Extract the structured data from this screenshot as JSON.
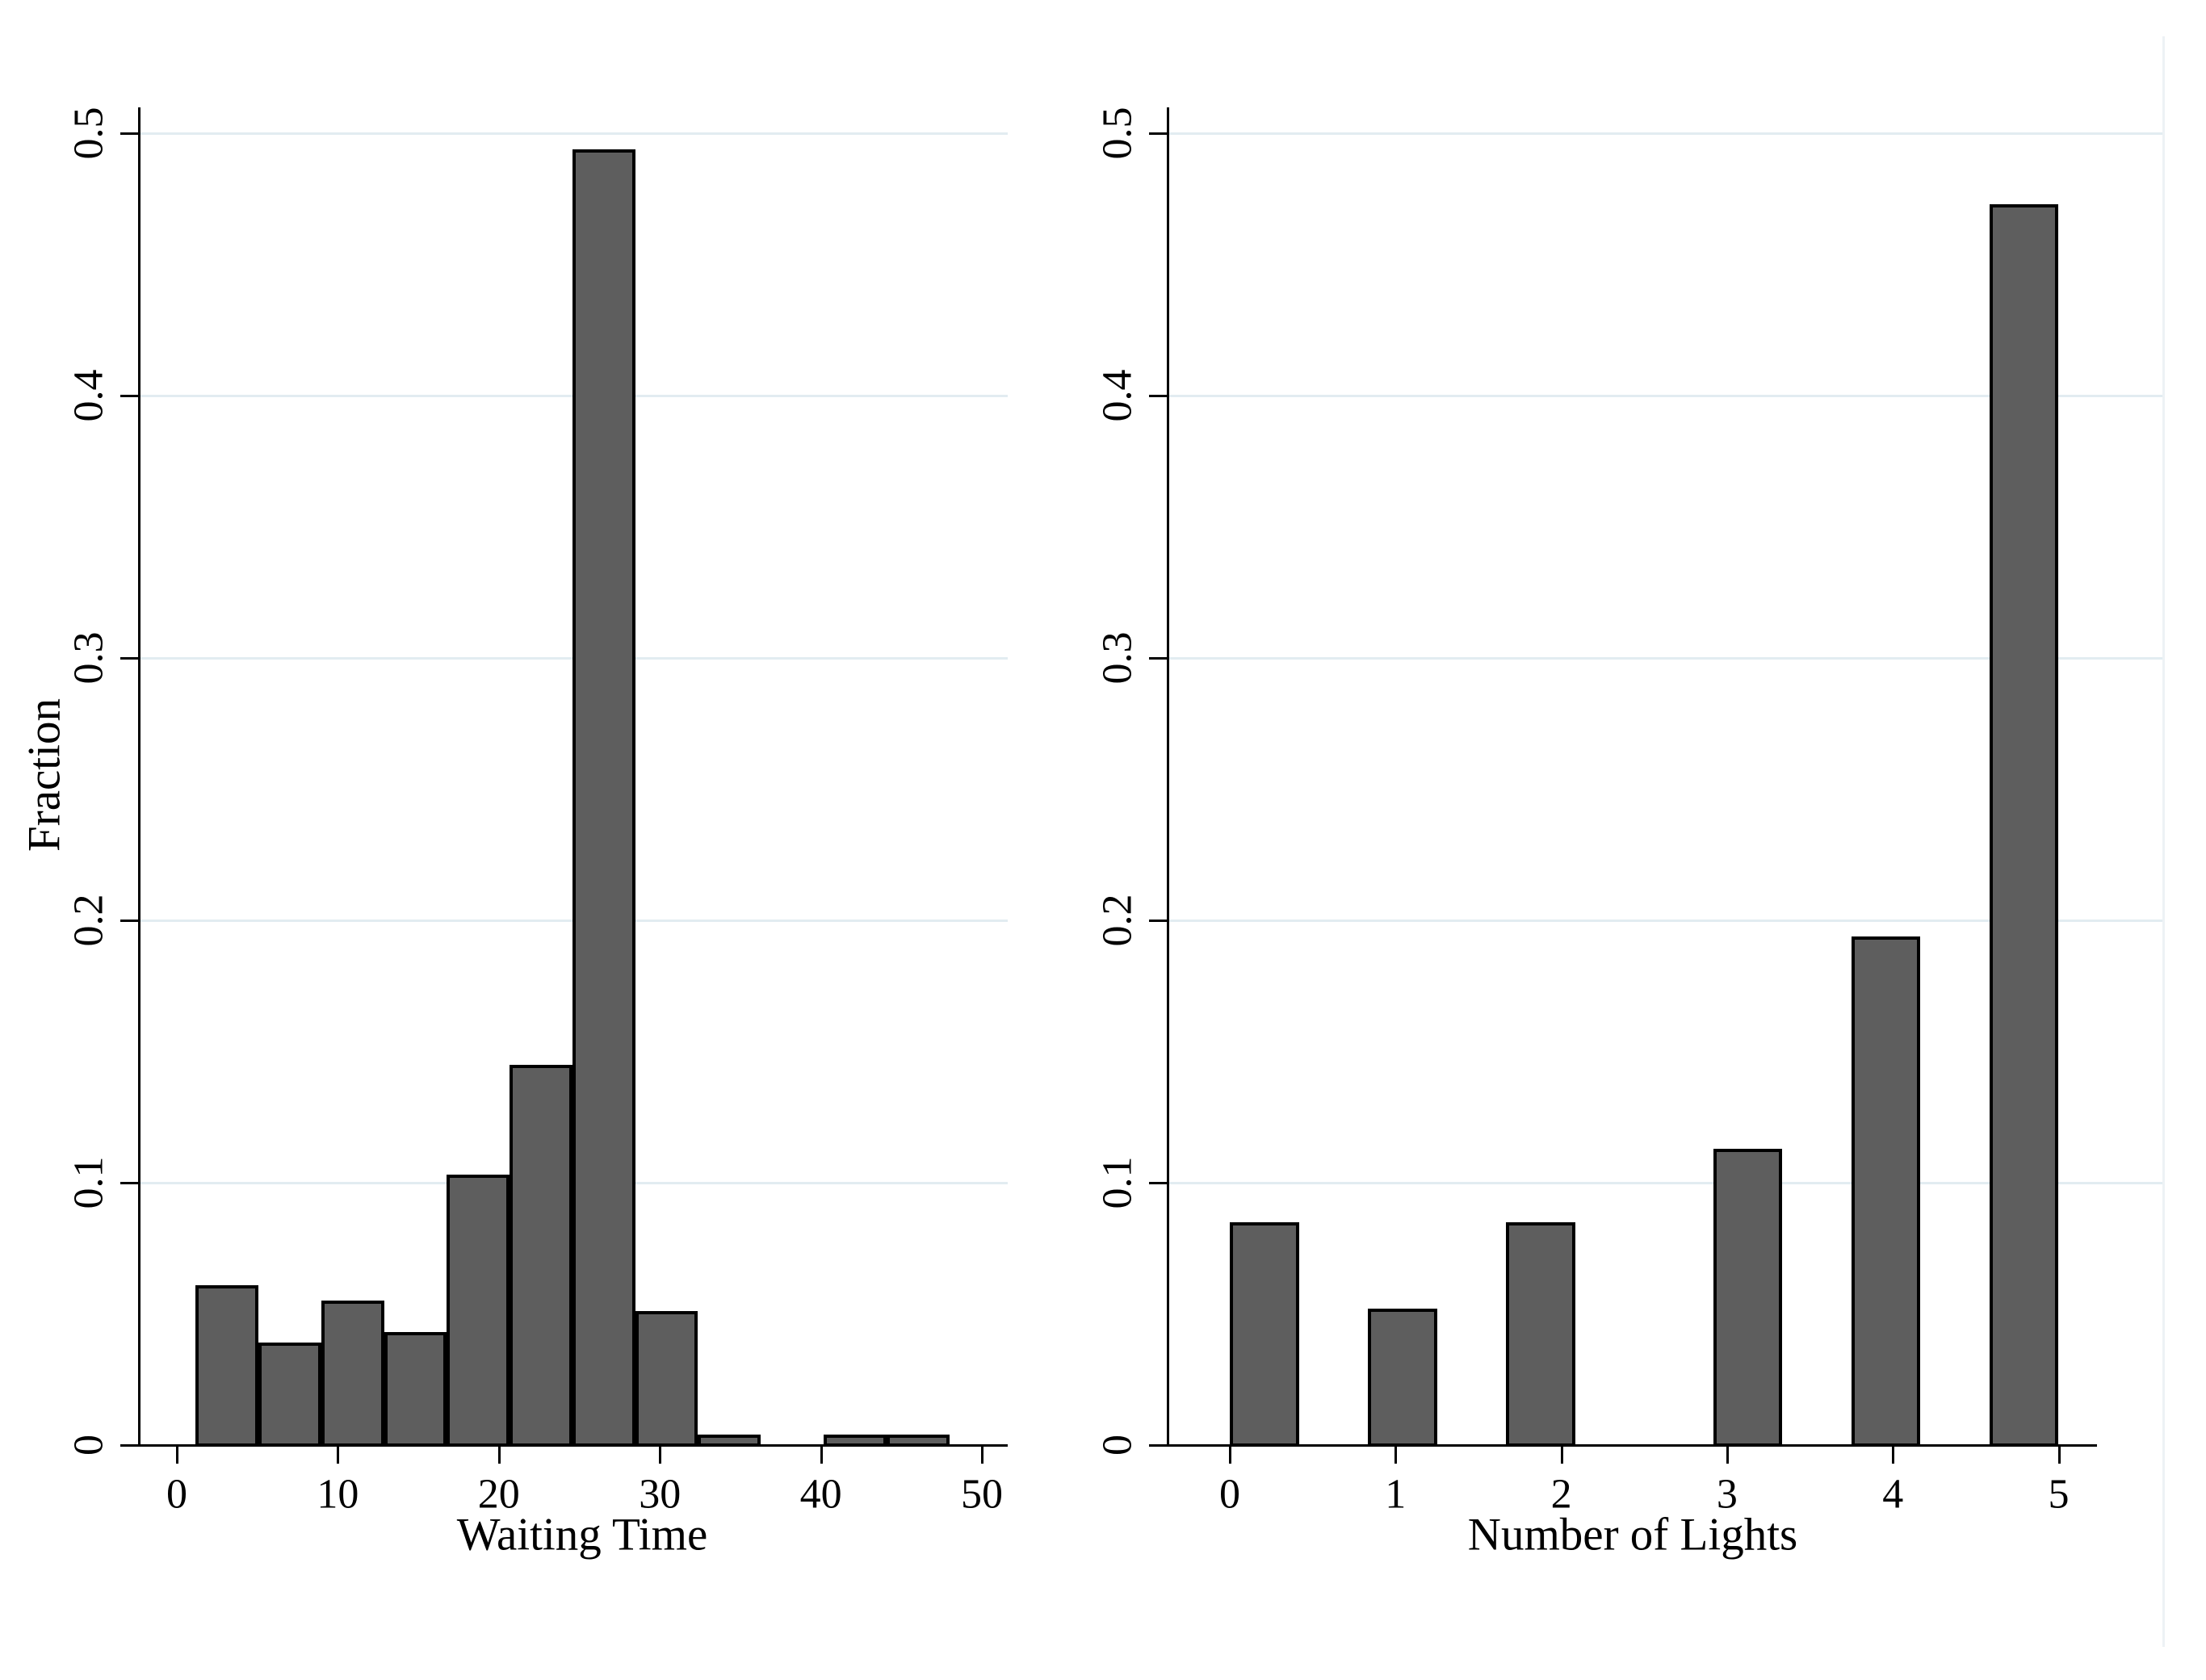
{
  "style": {
    "bar_fill": "#5e5e5e",
    "bar_stroke": "#000000",
    "grid_color": "#e2ecf1",
    "plot_border_color": "#edf2f5",
    "axis_color": "#000000",
    "text_color": "#000000",
    "background": "#ffffff"
  },
  "chart_data": [
    {
      "type": "bar",
      "kind": "histogram",
      "title": "",
      "xlabel": "Waiting Time",
      "ylabel": "Fraction",
      "ylim": [
        0,
        0.5
      ],
      "grid": "horizontal",
      "legend": "none",
      "yticks": [
        0,
        0.1,
        0.2,
        0.3,
        0.4,
        0.5
      ],
      "ytick_labels": [
        "0",
        "0.1",
        "0.2",
        "0.3",
        "0.4",
        "0.5"
      ],
      "xticks": [
        0,
        10,
        20,
        30,
        40,
        50
      ],
      "xtick_labels": [
        "0",
        "10",
        "20",
        "30",
        "40",
        "50"
      ],
      "bin_width": 3.9,
      "bars": [
        {
          "x": 1.17,
          "width": 3.9,
          "fraction": 0.061
        },
        {
          "x": 5.07,
          "width": 3.9,
          "fraction": 0.039
        },
        {
          "x": 8.97,
          "width": 3.9,
          "fraction": 0.055
        },
        {
          "x": 12.87,
          "width": 3.9,
          "fraction": 0.043
        },
        {
          "x": 16.77,
          "width": 3.9,
          "fraction": 0.103
        },
        {
          "x": 20.67,
          "width": 3.9,
          "fraction": 0.145
        },
        {
          "x": 24.57,
          "width": 3.9,
          "fraction": 0.494
        },
        {
          "x": 28.47,
          "width": 3.9,
          "fraction": 0.051
        },
        {
          "x": 32.37,
          "width": 3.9,
          "fraction": 0.004
        },
        {
          "x": 40.17,
          "width": 3.9,
          "fraction": 0.004
        },
        {
          "x": 44.07,
          "width": 3.9,
          "fraction": 0.004
        }
      ]
    },
    {
      "type": "bar",
      "kind": "histogram",
      "title": "",
      "xlabel": "Number of Lights",
      "ylabel": "",
      "ylim": [
        0,
        0.5
      ],
      "grid": "horizontal",
      "legend": "none",
      "yticks": [
        0,
        0.1,
        0.2,
        0.3,
        0.4,
        0.5
      ],
      "ytick_labels": [
        "0",
        "0.1",
        "0.2",
        "0.3",
        "0.4",
        "0.5"
      ],
      "xticks": [
        0,
        1,
        2,
        3,
        4,
        5
      ],
      "xtick_labels": [
        "0",
        "1",
        "2",
        "3",
        "4",
        "5"
      ],
      "bin_width": 0.4167,
      "bars": [
        {
          "x": 0,
          "width": 0.4167,
          "fraction": 0.085
        },
        {
          "x": 0.8333,
          "width": 0.4167,
          "fraction": 0.052
        },
        {
          "x": 1.6667,
          "width": 0.4167,
          "fraction": 0.085
        },
        {
          "x": 2.9167,
          "width": 0.4167,
          "fraction": 0.113
        },
        {
          "x": 3.75,
          "width": 0.4167,
          "fraction": 0.194
        },
        {
          "x": 4.5833,
          "width": 0.4167,
          "fraction": 0.473
        }
      ]
    }
  ]
}
